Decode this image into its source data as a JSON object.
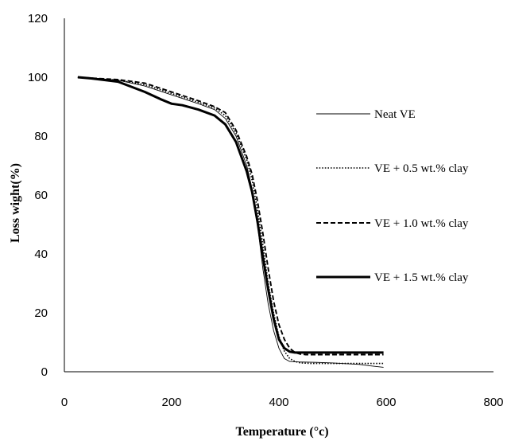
{
  "chart_data": {
    "type": "line",
    "title": "",
    "xlabel": "Temperature (°c)",
    "ylabel": "Loss wight(%)",
    "xlim": [
      0,
      800
    ],
    "ylim": [
      0,
      120
    ],
    "xticks": [
      0,
      200,
      400,
      600,
      800
    ],
    "yticks": [
      0,
      20,
      40,
      60,
      80,
      100,
      120
    ],
    "grid": false,
    "legend_position": "right",
    "series": [
      {
        "name": "Neat VE",
        "style": "thin-solid",
        "x": [
          25,
          50,
          100,
          150,
          200,
          250,
          280,
          300,
          320,
          340,
          350,
          360,
          370,
          380,
          390,
          400,
          410,
          420,
          440,
          470,
          500,
          550,
          570,
          595
        ],
        "y": [
          100,
          99.7,
          99,
          97,
          94,
          91,
          89,
          86,
          80,
          70,
          62,
          50,
          35,
          23,
          14,
          8,
          4.5,
          3.5,
          3.3,
          3.2,
          3.0,
          2.5,
          2,
          1.5
        ]
      },
      {
        "name": "VE + 0.5 wt.% clay",
        "style": "dotted",
        "x": [
          25,
          50,
          100,
          150,
          200,
          250,
          280,
          300,
          320,
          340,
          350,
          360,
          370,
          380,
          390,
          400,
          410,
          420,
          430,
          440,
          460,
          500,
          550,
          595
        ],
        "y": [
          100,
          99.7,
          99,
          97.5,
          94.5,
          91.5,
          89.5,
          87,
          81,
          72,
          65,
          55,
          43,
          30,
          20,
          12,
          7,
          4.5,
          3.5,
          3,
          2.8,
          2.8,
          2.8,
          2.8
        ]
      },
      {
        "name": "VE + 1.0 wt.% clay",
        "style": "dashed",
        "x": [
          25,
          50,
          100,
          150,
          200,
          250,
          280,
          300,
          320,
          340,
          350,
          360,
          370,
          380,
          390,
          400,
          410,
          420,
          430,
          440,
          450,
          500,
          550,
          595
        ],
        "y": [
          100,
          99.7,
          99.2,
          98,
          95,
          92,
          90,
          88,
          82,
          73,
          67,
          58,
          47,
          35,
          24,
          16,
          11,
          8,
          6.5,
          6,
          5.8,
          5.8,
          5.8,
          5.8
        ]
      },
      {
        "name": "VE + 1.5 wt.% clay",
        "style": "thick-solid",
        "x": [
          25,
          50,
          100,
          150,
          180,
          200,
          220,
          250,
          280,
          300,
          320,
          340,
          350,
          360,
          370,
          380,
          390,
          400,
          410,
          420,
          430,
          450,
          500,
          550,
          595
        ],
        "y": [
          100,
          99.6,
          98.5,
          95,
          92.5,
          91,
          90.5,
          89,
          87,
          84,
          78,
          68,
          61,
          51,
          39,
          28,
          18,
          11,
          8,
          6.8,
          6.5,
          6.5,
          6.5,
          6.5,
          6.5
        ]
      }
    ]
  }
}
